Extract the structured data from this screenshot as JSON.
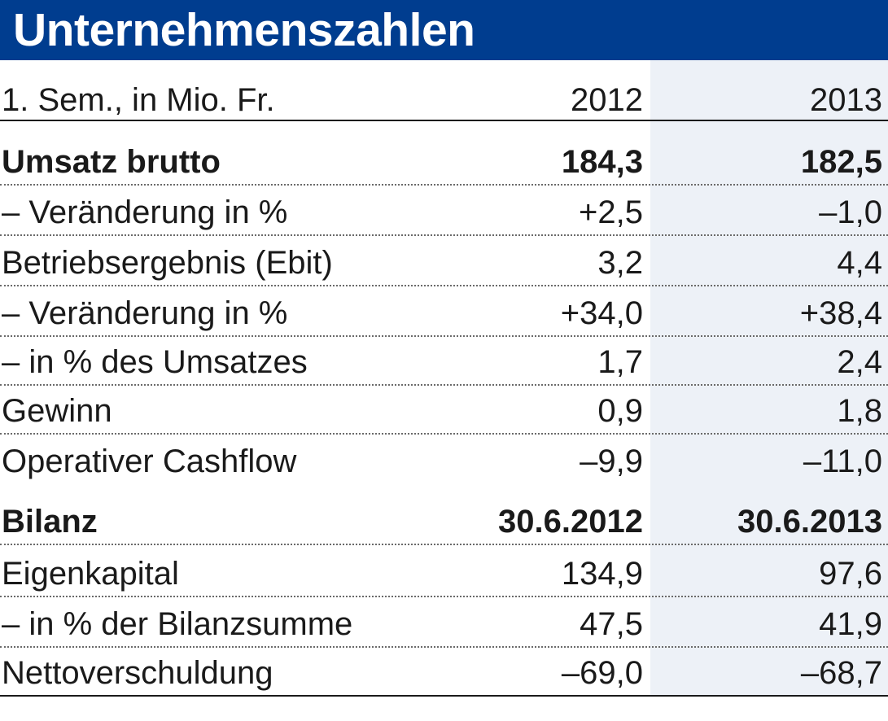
{
  "title": "Unternehmenszahlen",
  "chart_data": {
    "type": "table",
    "title": "Unternehmenszahlen",
    "header": {
      "label": "1. Sem., in Mio. Fr.",
      "col1": "2012",
      "col2": "2013"
    },
    "rows": [
      {
        "label": "Umsatz brutto",
        "v2012": "184,3",
        "v2013": "182,5",
        "bold": true
      },
      {
        "label": "– Veränderung in %",
        "v2012": "+2,5",
        "v2013": "–1,0"
      },
      {
        "label": "Betriebsergebnis (Ebit)",
        "v2012": "3,2",
        "v2013": "4,4"
      },
      {
        "label": "– Veränderung in %",
        "v2012": "+34,0",
        "v2013": "+38,4"
      },
      {
        "label": "– in % des Umsatzes",
        "v2012": "1,7",
        "v2013": "2,4"
      },
      {
        "label": "Gewinn",
        "v2012": "0,9",
        "v2013": "1,8"
      },
      {
        "label": "Operativer Cashflow",
        "v2012": "–9,9",
        "v2013": "–11,0"
      },
      {
        "label": "Bilanz",
        "v2012": "30.6.2012",
        "v2013": "30.6.2013",
        "bold": true
      },
      {
        "label": "Eigenkapital",
        "v2012": "134,9",
        "v2013": "97,6"
      },
      {
        "label": "– in % der Bilanzsumme",
        "v2012": "47,5",
        "v2013": "41,9"
      },
      {
        "label": "Nettoverschuldung",
        "v2012": "–69,0",
        "v2013": "–68,7"
      }
    ]
  },
  "colors": {
    "title_bar": "#003d8f",
    "title_text": "#ffffff",
    "shade": "#edf1f7"
  }
}
